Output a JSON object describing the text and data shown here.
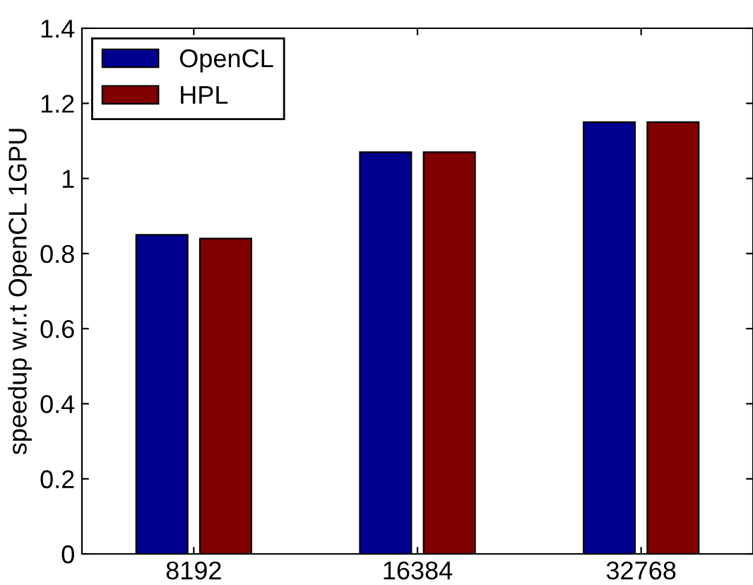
{
  "chart_data": {
    "type": "bar",
    "ylabel": "speedup w.r.t OpenCL 1GPU",
    "categories": [
      "8192",
      "16384",
      "32768"
    ],
    "series": [
      {
        "name": "OpenCL",
        "color": "#00008f",
        "values": [
          0.85,
          1.07,
          1.15
        ]
      },
      {
        "name": "HPL",
        "color": "#800000",
        "values": [
          0.84,
          1.07,
          1.15
        ]
      }
    ],
    "ylim": [
      0,
      1.4
    ],
    "yticks": [
      0,
      0.2,
      0.4,
      0.6,
      0.8,
      1,
      1.2,
      1.4
    ],
    "grid": false,
    "legend": "upper left"
  }
}
